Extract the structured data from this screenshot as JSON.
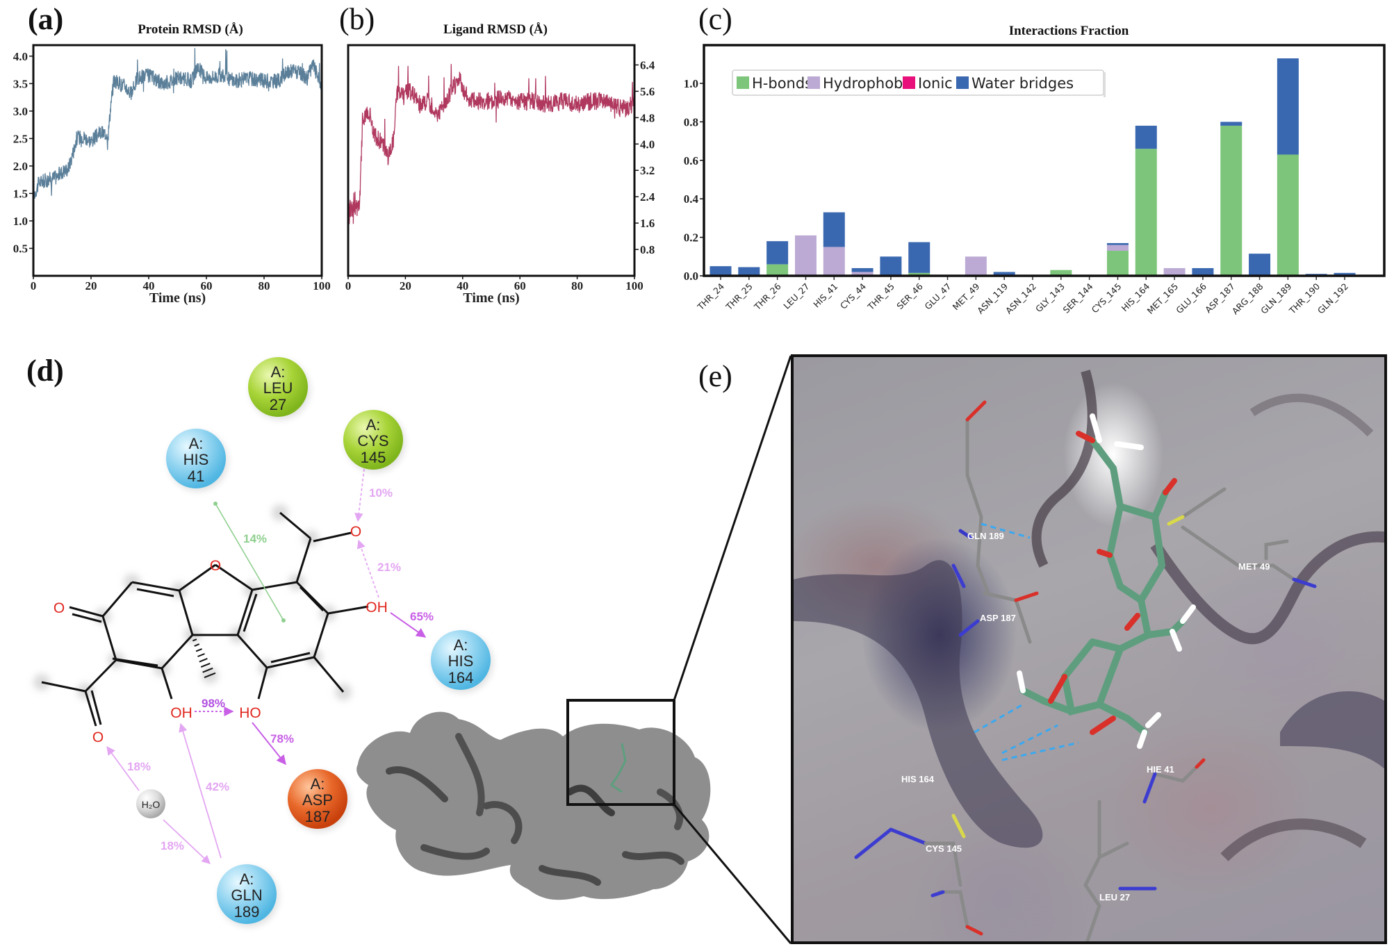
{
  "panels": {
    "a": {
      "label": "(a)",
      "title": "Protein RMSD (Å)",
      "xlabel": "Time (ns)"
    },
    "b": {
      "label": "(b)",
      "title": "Ligand RMSD (Å)",
      "xlabel": "Time (ns)"
    },
    "c": {
      "label": "(c)",
      "title": "Interactions Fraction"
    },
    "d": {
      "label": "(d)"
    },
    "e": {
      "label": "(e)"
    }
  },
  "colors": {
    "protein_rmsd": "#5b7f99",
    "ligand_rmsd": "#b0385f",
    "hbonds": "#7cc57a",
    "hydrophobic": "#bcaad4",
    "ionic": "#e8107a",
    "water_bridges": "#3a68b0",
    "residue_blue": "#8fd3f0",
    "residue_green": "#a8d438",
    "residue_orange": "#e8682a",
    "ligand_stick": "#5e9e7e"
  },
  "chart_data": [
    {
      "id": "a",
      "type": "line",
      "title": "Protein RMSD (Å)",
      "xlabel": "Time (ns)",
      "ylabel": "",
      "xlim": [
        0,
        100
      ],
      "ylim": [
        0,
        4.2
      ],
      "xticks": [
        "0",
        "20",
        "40",
        "60",
        "80",
        "100"
      ],
      "yticks": [
        "0.5",
        "1.0",
        "1.5",
        "2.0",
        "2.5",
        "3.0",
        "3.5",
        "4.0"
      ],
      "series": [
        {
          "name": "Protein RMSD",
          "x": [
            0,
            2,
            5,
            8,
            10,
            12,
            13,
            15,
            17,
            20,
            23,
            26,
            27,
            28,
            30,
            32,
            34,
            36,
            40,
            45,
            50,
            55,
            57,
            60,
            65,
            70,
            75,
            80,
            85,
            88,
            90,
            95,
            97,
            100
          ],
          "values": [
            1.45,
            1.7,
            1.75,
            1.8,
            1.9,
            1.95,
            2.1,
            2.5,
            2.55,
            2.45,
            2.6,
            2.6,
            3.2,
            3.55,
            3.5,
            3.45,
            3.3,
            3.6,
            3.65,
            3.5,
            3.6,
            3.55,
            3.8,
            3.6,
            3.65,
            3.55,
            3.6,
            3.55,
            3.55,
            3.7,
            3.75,
            3.6,
            3.85,
            3.45
          ]
        }
      ],
      "grid": false
    },
    {
      "id": "b",
      "type": "line",
      "title": "Ligand RMSD (Å)",
      "xlabel": "Time (ns)",
      "ylabel": "",
      "xlim": [
        0,
        100
      ],
      "ylim": [
        0,
        7.0
      ],
      "yaxis_position": "right",
      "xticks": [
        "0",
        "20",
        "40",
        "60",
        "80",
        "100"
      ],
      "yticks": [
        "0.8",
        "1.6",
        "2.4",
        "3.2",
        "4.0",
        "4.8",
        "5.6",
        "6.4"
      ],
      "series": [
        {
          "name": "Ligand RMSD",
          "x": [
            0,
            2,
            4,
            5,
            7,
            9,
            11,
            13,
            14,
            16,
            17,
            19,
            22,
            25,
            28,
            31,
            33,
            36,
            39,
            40,
            42,
            45,
            50,
            55,
            60,
            65,
            70,
            75,
            80,
            85,
            90,
            95,
            98,
            100
          ],
          "values": [
            2.1,
            2.0,
            2.1,
            4.7,
            4.9,
            4.3,
            4.1,
            3.9,
            3.6,
            4.2,
            5.6,
            5.5,
            5.6,
            5.2,
            5.3,
            4.9,
            5.1,
            5.6,
            6.0,
            5.7,
            5.4,
            5.3,
            5.3,
            5.4,
            5.3,
            5.3,
            5.2,
            5.3,
            5.2,
            5.3,
            5.3,
            5.1,
            5.1,
            5.3
          ]
        }
      ],
      "grid": false
    },
    {
      "id": "c",
      "type": "bar",
      "stacked": true,
      "title": "Interactions Fraction",
      "xlabel": "",
      "ylabel": "",
      "ylim": [
        0,
        1.2
      ],
      "yticks": [
        "0.0",
        "0.2",
        "0.4",
        "0.6",
        "0.8",
        "1.0"
      ],
      "legend": {
        "position": "upper-left",
        "entries": [
          "H-bonds",
          "Hydrophobic",
          "Ionic",
          "Water bridges"
        ]
      },
      "categories": [
        "THR_24",
        "THR_25",
        "THR_26",
        "LEU_27",
        "HIS_41",
        "CYS_44",
        "THR_45",
        "SER_46",
        "GLU_47",
        "MET_49",
        "ASN_119",
        "ASN_142",
        "GLY_143",
        "SER_144",
        "CYS_145",
        "HIS_164",
        "MET_165",
        "GLU_166",
        "ASP_187",
        "ARG_188",
        "GLN_189",
        "THR_190",
        "GLN_192"
      ],
      "series": [
        {
          "name": "H-bonds",
          "values": [
            0,
            0,
            0.06,
            0,
            0,
            0,
            0,
            0.015,
            0,
            0,
            0,
            0,
            0.03,
            0,
            0.13,
            0.66,
            0,
            0,
            0.78,
            0.005,
            0.63,
            0,
            0
          ]
        },
        {
          "name": "Hydrophobic",
          "values": [
            0,
            0,
            0,
            0.21,
            0.15,
            0.02,
            0,
            0,
            0,
            0.1,
            0,
            0,
            0,
            0,
            0.03,
            0,
            0.04,
            0,
            0,
            0,
            0,
            0,
            0
          ]
        },
        {
          "name": "Ionic",
          "values": [
            0,
            0,
            0,
            0,
            0,
            0,
            0,
            0,
            0,
            0,
            0,
            0,
            0,
            0,
            0,
            0,
            0,
            0,
            0,
            0,
            0,
            0,
            0
          ]
        },
        {
          "name": "Water bridges",
          "values": [
            0.05,
            0.045,
            0.12,
            0,
            0.18,
            0.02,
            0.1,
            0.16,
            0,
            0,
            0.02,
            0.005,
            0,
            0.005,
            0.01,
            0.12,
            0,
            0.04,
            0.02,
            0.11,
            0.5,
            0.01,
            0.015
          ]
        }
      ],
      "grid": false
    }
  ],
  "interaction_diagram": {
    "residues": [
      {
        "chain": "A:",
        "name": "LEU",
        "num": "27",
        "color": "green"
      },
      {
        "chain": "A:",
        "name": "CYS",
        "num": "145",
        "color": "green"
      },
      {
        "chain": "A:",
        "name": "HIS",
        "num": "41",
        "color": "blue"
      },
      {
        "chain": "A:",
        "name": "HIS",
        "num": "164",
        "color": "blue"
      },
      {
        "chain": "A:",
        "name": "ASP",
        "num": "187",
        "color": "orange"
      },
      {
        "chain": "A:",
        "name": "GLN",
        "num": "189",
        "color": "blue"
      }
    ],
    "water": "H₂O",
    "atoms": {
      "o": "O",
      "oh": "OH",
      "ho": "HO"
    },
    "percentages": {
      "his41_pi": "14%",
      "cys145": "10%",
      "intra_21": "21%",
      "his164": "65%",
      "intra_98": "98%",
      "asp187": "78%",
      "water_o": "18%",
      "water_gln": "18%",
      "gln189": "42%"
    }
  },
  "structure_view": {
    "labels": [
      "GLN 189",
      "ASP 187",
      "MET 49",
      "HIS 164",
      "HIE 41",
      "CYS 145",
      "LEU 27"
    ]
  }
}
